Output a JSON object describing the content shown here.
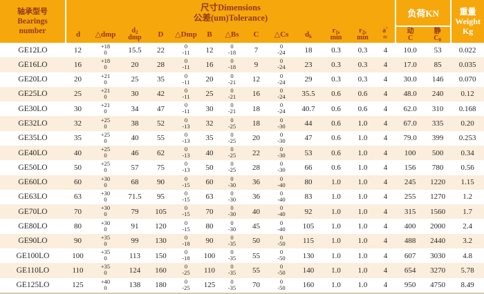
{
  "colors": {
    "header_bg": "#F6A70B",
    "header_text_dark": "#93391B",
    "header_text_light": "#FFFFFF",
    "row_stripe": "#FBEEDC",
    "body_text": "#272727",
    "divider": "#FFFFFF",
    "bottom_border": "#D8C7AC"
  },
  "header": {
    "bearings": [
      "轴承型号",
      "Bearings",
      "number"
    ],
    "dimensions_title": [
      "尺寸Dimensions",
      "公差(um)Tolerance)"
    ],
    "load_label": "负荷KN",
    "weight": [
      "重量",
      "Weight",
      "Kg"
    ],
    "columns": [
      {
        "key": "d",
        "l1": "d"
      },
      {
        "key": "dmp",
        "l1": "△dmp"
      },
      {
        "key": "d2",
        "l1": "d",
        "l1sub": "2",
        "l2": "dmp"
      },
      {
        "key": "D",
        "l1": "D"
      },
      {
        "key": "Dmp",
        "l1": "△Dmp"
      },
      {
        "key": "B",
        "l1": "B"
      },
      {
        "key": "Bs",
        "l1": "△Bs"
      },
      {
        "key": "C",
        "l1": "C"
      },
      {
        "key": "Cs",
        "l1": "△Cs"
      },
      {
        "key": "dk",
        "l1": "d",
        "l1sub": "k"
      },
      {
        "key": "r1s",
        "l1": "r",
        "l1sub": "1s",
        "l2": "min"
      },
      {
        "key": "r2s",
        "l1": "r",
        "l1sub": "2s",
        "l2": "min"
      },
      {
        "key": "a",
        "l1": "a",
        "l1sup": "°",
        "l2": "≈"
      },
      {
        "key": "dyn",
        "l1": "动",
        "l2": "C"
      },
      {
        "key": "stat",
        "l1": "静",
        "l2": "C",
        "l2sub": "0"
      }
    ]
  },
  "rows": [
    [
      "GE12LO",
      "12",
      [
        "+18",
        "0"
      ],
      "15.5",
      "22",
      [
        "0",
        "-11"
      ],
      "12",
      [
        "0",
        "-18"
      ],
      "7",
      [
        "0",
        "-24"
      ],
      "18",
      "0.3",
      "0.3",
      "4",
      "10.0",
      "53",
      "0.022"
    ],
    [
      "GE16LO",
      "16",
      [
        "+18",
        "0"
      ],
      "20",
      "28",
      [
        "0",
        "-11"
      ],
      "16",
      [
        "0",
        "-18"
      ],
      "9",
      [
        "0",
        "-24"
      ],
      "23",
      "0.3",
      "0.3",
      "4",
      "17.0",
      "85",
      "0.035"
    ],
    [
      "GE20LO",
      "20",
      [
        "+21",
        "0"
      ],
      "25",
      "35",
      [
        "0",
        "-11"
      ],
      "20",
      [
        "0",
        "-21"
      ],
      "12",
      [
        "0",
        "-24"
      ],
      "29",
      "0.3",
      "0.3",
      "4",
      "30.0",
      "146",
      "0.070"
    ],
    [
      "GE25LO",
      "25",
      [
        "+21",
        "0"
      ],
      "30",
      "42",
      [
        "0",
        "-11"
      ],
      "25",
      [
        "0",
        "-21"
      ],
      "16",
      [
        "0",
        "-24"
      ],
      "35.5",
      "0.6",
      "0.6",
      "4",
      "48.0",
      "240",
      "0.12"
    ],
    [
      "GE30LO",
      "30",
      [
        "+21",
        "0"
      ],
      "34",
      "47",
      [
        "0",
        "-11"
      ],
      "30",
      [
        "0",
        "-21"
      ],
      "18",
      [
        "0",
        "-24"
      ],
      "40.7",
      "0.6",
      "0.6",
      "4",
      "62.0",
      "310",
      "0.168"
    ],
    [
      "GE32LO",
      "32",
      [
        "+25",
        "0"
      ],
      "38",
      "52",
      [
        "0",
        "-13"
      ],
      "32",
      [
        "0",
        "-25"
      ],
      "18",
      [
        "0",
        "-30"
      ],
      "44",
      "0.6",
      "1.0",
      "4",
      "67.0",
      "335",
      "0.20"
    ],
    [
      "GE35LO",
      "35",
      [
        "+25",
        "0"
      ],
      "40",
      "55",
      [
        "0",
        "-13"
      ],
      "35",
      [
        "0",
        "-25"
      ],
      "20",
      [
        "0",
        "-30"
      ],
      "47",
      "0.6",
      "1.0",
      "4",
      "79.0",
      "399",
      "0.253"
    ],
    [
      "GE40LO",
      "40",
      [
        "+25",
        "0"
      ],
      "46",
      "62",
      [
        "0",
        "-13"
      ],
      "40",
      [
        "0",
        "-25"
      ],
      "22",
      [
        "0",
        "-30"
      ],
      "53",
      "0.6",
      "1.0",
      "4",
      "100",
      "500",
      "0.34"
    ],
    [
      "GE50LO",
      "50",
      [
        "+25",
        "0"
      ],
      "57",
      "75",
      [
        "0",
        "-13"
      ],
      "50",
      [
        "0",
        "-25"
      ],
      "28",
      [
        "0",
        "-30"
      ],
      "66",
      "0.6",
      "1.0",
      "4",
      "156",
      "780",
      "0.56"
    ],
    [
      "GE60LO",
      "60",
      [
        "+30",
        "0"
      ],
      "68",
      "90",
      [
        "0",
        "-15"
      ],
      "60",
      [
        "0",
        "-30"
      ],
      "36",
      [
        "0",
        "-40"
      ],
      "80",
      "1.0",
      "1.0",
      "4",
      "245",
      "1220",
      "1.15"
    ],
    [
      "GE63LO",
      "63",
      [
        "+30",
        "0"
      ],
      "71.5",
      "95",
      [
        "0",
        "-15"
      ],
      "63",
      [
        "0",
        "-30"
      ],
      "36",
      [
        "0",
        "-40"
      ],
      "83",
      "1.0",
      "1.0",
      "4",
      "255",
      "1270",
      "1.2"
    ],
    [
      "GE70LO",
      "70",
      [
        "+30",
        "0"
      ],
      "79",
      "105",
      [
        "0",
        "-15"
      ],
      "70",
      [
        "0",
        "-30"
      ],
      "40",
      [
        "0",
        "-40"
      ],
      "92",
      "1.0",
      "1.0",
      "4",
      "315",
      "1560",
      "1.7"
    ],
    [
      "GE80LO",
      "80",
      [
        "+30",
        "0"
      ],
      "91",
      "120",
      [
        "0",
        "-15"
      ],
      "80",
      [
        "0",
        "-30"
      ],
      "45",
      [
        "0",
        "-40"
      ],
      "105",
      "1.0",
      "1.0",
      "4",
      "400",
      "2000",
      "2.4"
    ],
    [
      "GE90LO",
      "90",
      [
        "+35",
        "0"
      ],
      "99",
      "130",
      [
        "0",
        "-18"
      ],
      "90",
      [
        "0",
        "-35"
      ],
      "50",
      [
        "0",
        "-50"
      ],
      "115",
      "1.0",
      "1.0",
      "4",
      "488",
      "2440",
      "3.2"
    ],
    [
      "GE100LO",
      "100",
      [
        "+35",
        "0"
      ],
      "113",
      "150",
      [
        "0",
        "-18"
      ],
      "100",
      [
        "0",
        "-35"
      ],
      "55",
      [
        "0",
        "-50"
      ],
      "130",
      "1.0",
      "1.0",
      "4",
      "607",
      "3030",
      "4.8"
    ],
    [
      "GE110LO",
      "110",
      [
        "+35",
        "0"
      ],
      "124",
      "160",
      [
        "0",
        "-25"
      ],
      "110",
      [
        "0",
        "-35"
      ],
      "55",
      [
        "0",
        "-50"
      ],
      "140",
      "1.0",
      "1.0",
      "4",
      "654",
      "3270",
      "5.78"
    ],
    [
      "GE125LO",
      "125",
      [
        "+40",
        "0"
      ],
      "138",
      "180",
      [
        "0",
        "-25"
      ],
      "125",
      [
        "0",
        "-35"
      ],
      "70",
      [
        "0",
        "-50"
      ],
      "160",
      "1.0",
      "1.0",
      "4",
      "950",
      "4750",
      "8.49"
    ]
  ]
}
